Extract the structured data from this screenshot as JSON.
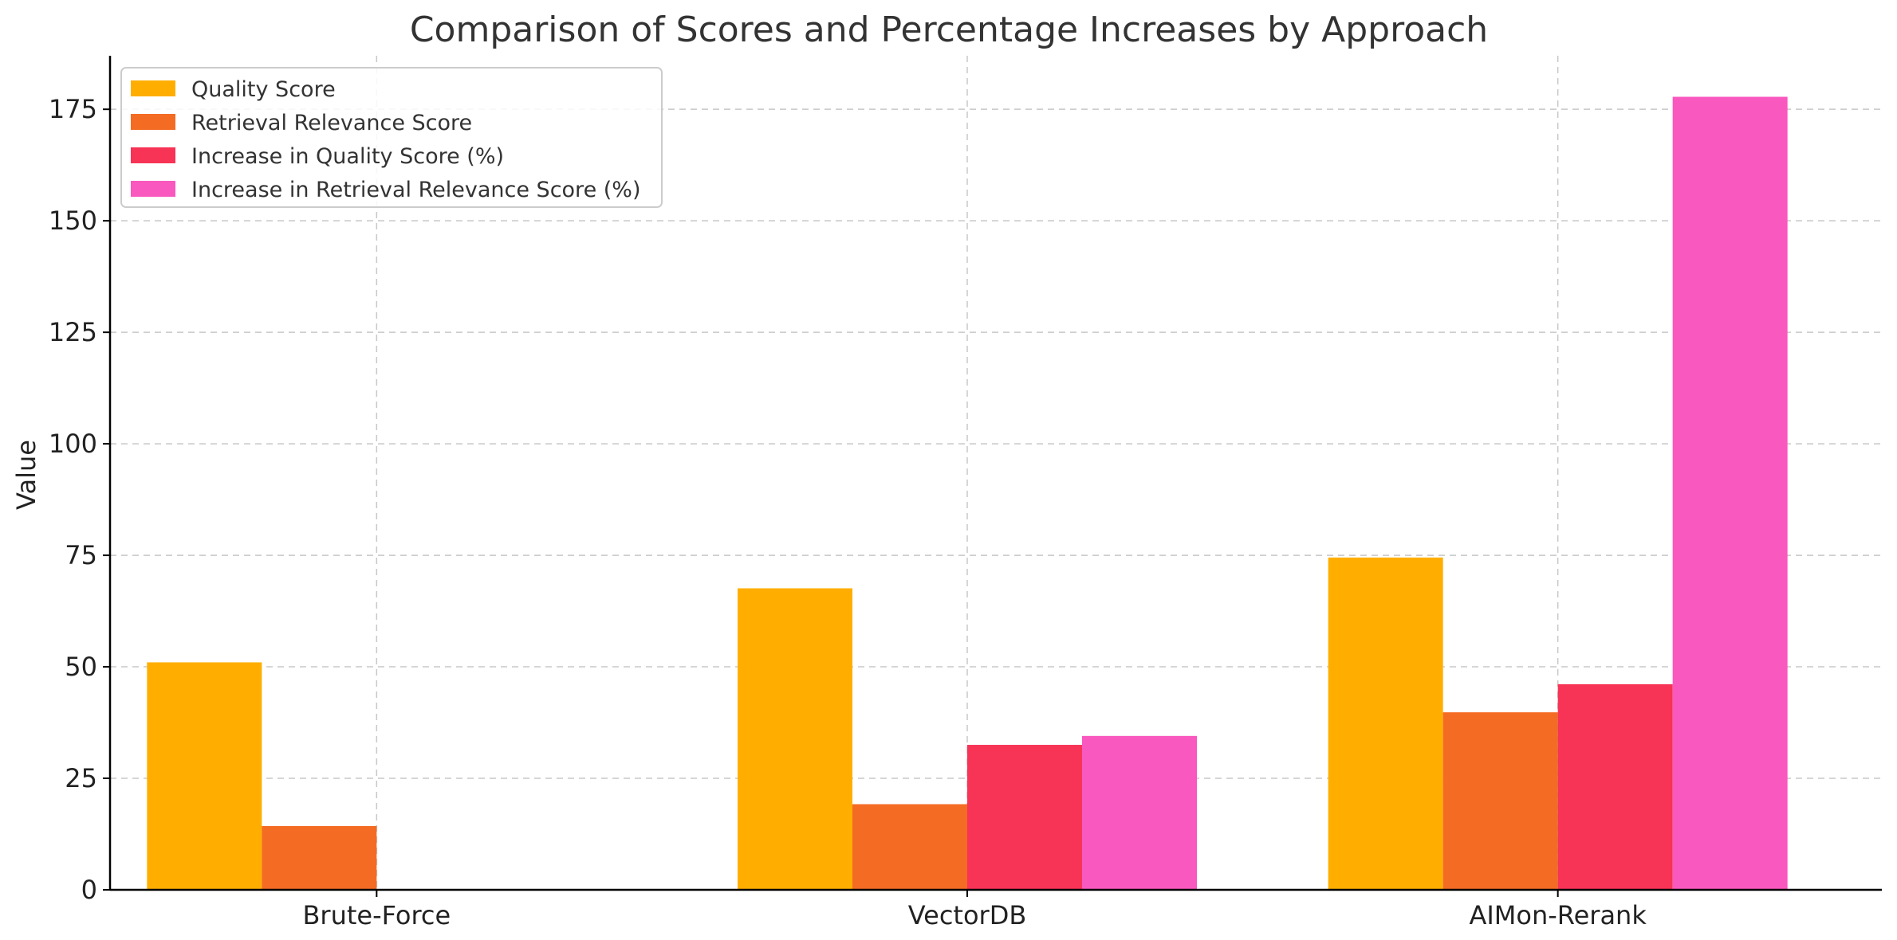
{
  "chart_data": {
    "type": "bar",
    "title": "Comparison of Scores and Percentage Increases by Approach",
    "xlabel": "",
    "ylabel": "Value",
    "categories": [
      "Brute-Force",
      "VectorDB",
      "AIMon-Rerank"
    ],
    "series": [
      {
        "name": "Quality Score",
        "color": "#FFAE00",
        "values": [
          51,
          67.6,
          74.5
        ]
      },
      {
        "name": "Retrieval Relevance Score",
        "color": "#F46B23",
        "values": [
          14.3,
          19.2,
          39.8
        ]
      },
      {
        "name": "Increase in Quality Score (%)",
        "color": "#F73356",
        "values": [
          0,
          32.5,
          46.1
        ]
      },
      {
        "name": "Increase in Retrieval Relevance Score (%)",
        "color": "#F958BE",
        "values": [
          0,
          34.5,
          177.8
        ]
      }
    ],
    "ylim": [
      0,
      187
    ],
    "yticks": [
      0,
      25,
      50,
      75,
      100,
      125,
      150,
      175
    ],
    "grid": true,
    "legend_position": "top-left"
  }
}
